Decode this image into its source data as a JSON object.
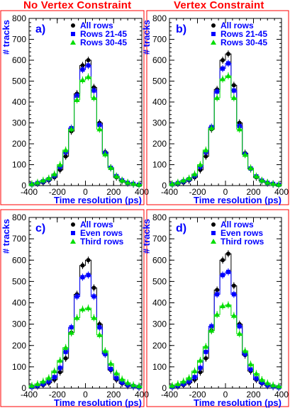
{
  "column_titles": [
    "No Vertex Constraint",
    "Vertex Constraint"
  ],
  "colors": {
    "frame": "#ff0000",
    "axis_label": "#0000ff",
    "panel_label": "#0000ff",
    "all": "#000000",
    "series_b": "#0000ff",
    "series_c": "#00dd00"
  },
  "chart_data": [
    {
      "type": "scatter",
      "panel": "a)",
      "xlabel": "Time resolution (ps)",
      "ylabel": "# tracks",
      "xlim": [
        -400,
        400
      ],
      "ylim": [
        0,
        800
      ],
      "xticks": [
        -400,
        -200,
        0,
        200,
        400
      ],
      "yticks": [
        0,
        100,
        200,
        300,
        400,
        500,
        600,
        700,
        800
      ],
      "x": [
        -380,
        -340,
        -300,
        -260,
        -220,
        -180,
        -140,
        -100,
        -60,
        -20,
        20,
        60,
        100,
        140,
        180,
        220,
        260,
        300,
        340,
        380
      ],
      "series": [
        {
          "name": "All rows",
          "color": "#000000",
          "marker": "circle",
          "values": [
            5,
            10,
            15,
            25,
            40,
            75,
            140,
            260,
            440,
            575,
            600,
            470,
            300,
            160,
            85,
            40,
            22,
            12,
            7,
            3
          ]
        },
        {
          "name": "Rows 21-45",
          "color": "#0000ff",
          "marker": "square",
          "values": [
            6,
            12,
            20,
            30,
            48,
            90,
            160,
            275,
            430,
            555,
            575,
            455,
            290,
            155,
            85,
            45,
            25,
            13,
            8,
            4
          ]
        },
        {
          "name": "Rows 30-45",
          "color": "#00dd00",
          "marker": "triangle",
          "values": [
            8,
            15,
            25,
            35,
            55,
            100,
            170,
            270,
            410,
            505,
            520,
            420,
            270,
            150,
            85,
            45,
            25,
            15,
            9,
            5
          ]
        }
      ]
    },
    {
      "type": "scatter",
      "panel": "b)",
      "xlabel": "Time resolution (ps)",
      "ylabel": "# tracks",
      "xlim": [
        -400,
        400
      ],
      "ylim": [
        0,
        800
      ],
      "xticks": [
        -400,
        -200,
        0,
        200,
        400
      ],
      "yticks": [
        0,
        100,
        200,
        300,
        400,
        500,
        600,
        700,
        800
      ],
      "x": [
        -380,
        -340,
        -300,
        -260,
        -220,
        -180,
        -140,
        -100,
        -60,
        -20,
        20,
        60,
        100,
        140,
        180,
        220,
        260,
        300,
        340,
        380
      ],
      "series": [
        {
          "name": "All rows",
          "color": "#000000",
          "marker": "circle",
          "values": [
            5,
            10,
            15,
            25,
            40,
            75,
            140,
            270,
            460,
            600,
            630,
            480,
            300,
            155,
            80,
            40,
            22,
            12,
            7,
            3
          ]
        },
        {
          "name": "Rows 21-45",
          "color": "#0000ff",
          "marker": "square",
          "values": [
            6,
            12,
            20,
            30,
            48,
            90,
            160,
            280,
            450,
            560,
            585,
            455,
            285,
            150,
            82,
            44,
            24,
            13,
            8,
            4
          ]
        },
        {
          "name": "Rows 30-45",
          "color": "#00dd00",
          "marker": "triangle",
          "values": [
            8,
            15,
            25,
            35,
            55,
            100,
            170,
            275,
            420,
            510,
            525,
            420,
            270,
            148,
            84,
            45,
            25,
            15,
            9,
            5
          ]
        }
      ]
    },
    {
      "type": "scatter",
      "panel": "c)",
      "xlabel": "Time resolution (ps)",
      "ylabel": "# tracks",
      "xlim": [
        -400,
        400
      ],
      "ylim": [
        0,
        800
      ],
      "xticks": [
        -400,
        -200,
        0,
        200,
        400
      ],
      "yticks": [
        0,
        100,
        200,
        300,
        400,
        500,
        600,
        700,
        800
      ],
      "x": [
        -380,
        -340,
        -300,
        -260,
        -220,
        -180,
        -140,
        -100,
        -60,
        -20,
        20,
        60,
        100,
        140,
        180,
        220,
        260,
        300,
        340,
        380
      ],
      "series": [
        {
          "name": "All rows",
          "color": "#000000",
          "marker": "circle",
          "values": [
            5,
            10,
            15,
            25,
            40,
            75,
            140,
            260,
            440,
            575,
            600,
            470,
            300,
            160,
            85,
            40,
            22,
            12,
            7,
            3
          ]
        },
        {
          "name": "Even rows",
          "color": "#0000ff",
          "marker": "square",
          "values": [
            6,
            12,
            20,
            32,
            52,
            95,
            170,
            285,
            430,
            520,
            530,
            430,
            285,
            160,
            90,
            48,
            27,
            15,
            9,
            5
          ]
        },
        {
          "name": "Third rows",
          "color": "#00dd00",
          "marker": "triangle",
          "values": [
            12,
            20,
            32,
            48,
            80,
            130,
            190,
            260,
            330,
            370,
            375,
            330,
            250,
            175,
            115,
            70,
            42,
            25,
            15,
            10
          ]
        }
      ]
    },
    {
      "type": "scatter",
      "panel": "d)",
      "xlabel": "Time resolution (ps)",
      "ylabel": "# tracks",
      "xlim": [
        -400,
        400
      ],
      "ylim": [
        0,
        800
      ],
      "xticks": [
        -400,
        -200,
        0,
        200,
        400
      ],
      "yticks": [
        0,
        100,
        200,
        300,
        400,
        500,
        600,
        700,
        800
      ],
      "x": [
        -380,
        -340,
        -300,
        -260,
        -220,
        -180,
        -140,
        -100,
        -60,
        -20,
        20,
        60,
        100,
        140,
        180,
        220,
        260,
        300,
        340,
        380
      ],
      "series": [
        {
          "name": "All rows",
          "color": "#000000",
          "marker": "circle",
          "values": [
            5,
            10,
            15,
            25,
            40,
            75,
            140,
            270,
            460,
            600,
            630,
            480,
            300,
            155,
            80,
            40,
            22,
            12,
            7,
            3
          ]
        },
        {
          "name": "Even rows",
          "color": "#0000ff",
          "marker": "square",
          "values": [
            6,
            12,
            20,
            32,
            52,
            95,
            170,
            290,
            440,
            530,
            545,
            440,
            290,
            160,
            88,
            46,
            26,
            14,
            8,
            4
          ]
        },
        {
          "name": "Third rows",
          "color": "#00dd00",
          "marker": "triangle",
          "values": [
            12,
            20,
            32,
            48,
            80,
            130,
            195,
            270,
            345,
            385,
            390,
            340,
            255,
            175,
            112,
            68,
            40,
            24,
            14,
            9
          ]
        }
      ]
    }
  ]
}
